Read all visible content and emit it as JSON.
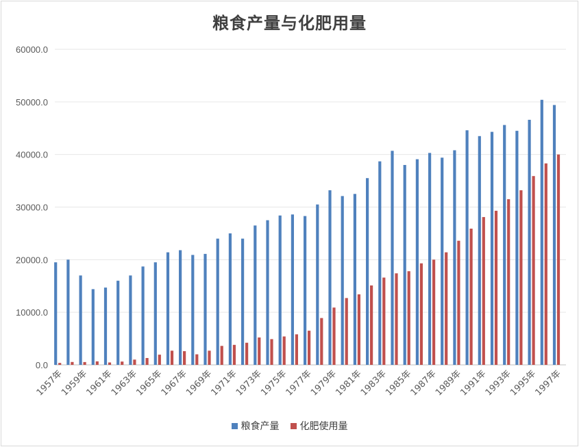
{
  "chart_data": {
    "type": "bar",
    "title": "粮食产量与化肥用量",
    "xlabel": "",
    "ylabel": "",
    "ylim": [
      0,
      60000
    ],
    "yticks": [
      "0.0",
      "10000.0",
      "20000.0",
      "30000.0",
      "40000.0",
      "50000.0",
      "60000.0"
    ],
    "grid": true,
    "legend_position": "bottom",
    "categories": [
      "1957年",
      "1958年",
      "1959年",
      "1960年",
      "1961年",
      "1962年",
      "1963年",
      "1964年",
      "1965年",
      "1966年",
      "1967年",
      "1968年",
      "1969年",
      "1970年",
      "1971年",
      "1972年",
      "1973年",
      "1974年",
      "1975年",
      "1976年",
      "1977年",
      "1978年",
      "1979年",
      "1980年",
      "1981年",
      "1982年",
      "1983年",
      "1984年",
      "1985年",
      "1986年",
      "1987年",
      "1988年",
      "1989年",
      "1990年",
      "1991年",
      "1992年",
      "1993年",
      "1994年",
      "1995年",
      "1996年",
      "1997年"
    ],
    "xtick_labels": [
      "1957年",
      "1959年",
      "1961年",
      "1963年",
      "1965年",
      "1967年",
      "1969年",
      "1971年",
      "1973年",
      "1975年",
      "1977年",
      "1979年",
      "1981年",
      "1983年",
      "1985年",
      "1987年",
      "1989年",
      "1991年",
      "1993年",
      "1995年",
      "1997年"
    ],
    "series": [
      {
        "name": "粮食产量",
        "color": "#4f81bd",
        "values": [
          19500,
          20000,
          17000,
          14400,
          14700,
          16000,
          17000,
          18700,
          19500,
          21400,
          21800,
          20900,
          21100,
          24000,
          25000,
          24000,
          26500,
          27500,
          28400,
          28600,
          28300,
          30500,
          33200,
          32100,
          32500,
          35500,
          38700,
          40700,
          38000,
          39100,
          40300,
          39400,
          40800,
          44600,
          43500,
          44300,
          45600,
          44500,
          46600,
          50400,
          49400
        ]
      },
      {
        "name": "化肥使用量",
        "color": "#c0504d",
        "values": [
          370,
          550,
          540,
          660,
          450,
          630,
          1000,
          1300,
          1940,
          2700,
          2600,
          2000,
          2700,
          3600,
          3800,
          4200,
          5200,
          4900,
          5400,
          5800,
          6500,
          8900,
          10900,
          12700,
          13400,
          15100,
          16600,
          17400,
          17800,
          19300,
          20000,
          21400,
          23600,
          25900,
          28100,
          29300,
          31500,
          33200,
          35900,
          38300,
          40000
        ]
      }
    ]
  }
}
